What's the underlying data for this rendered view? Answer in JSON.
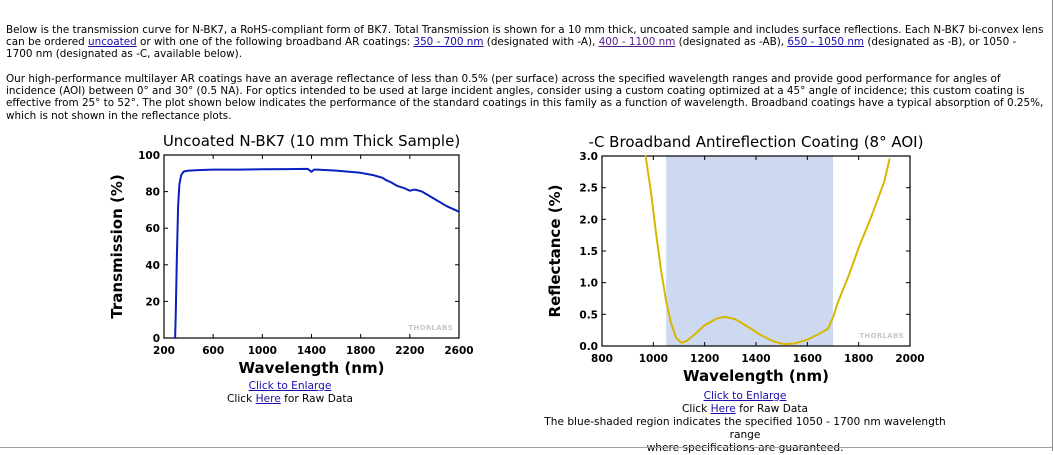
{
  "intro": {
    "p1_a": "Below is the transmission curve for N-BK7, a RoHS-compliant form of BK7. Total Transmission is shown for a 10 mm thick, uncoated sample and includes surface reflections. Each N-BK7 bi-convex lens can be ordered ",
    "link_uncoated": "uncoated",
    "p1_b": " or with one of the following broadband AR coatings: ",
    "link_350": "350 - 700 nm",
    "p1_c": " (designated with -A), ",
    "link_400": "400 - 1100 nm",
    "p1_d": " (designated as -AB), ",
    "link_650": "650 - 1050 nm",
    "p1_e": " (designated as -B), or 1050 - 1700 nm (designated as -C, available below).",
    "p2": "Our high-performance multilayer AR coatings have an average reflectance of less than 0.5% (per surface) across the specified wavelength ranges and provide good performance for angles of incidence (AOI) between 0° and 30° (0.5 NA). For optics intended to be used at large incident angles, consider using a custom coating optimized at a 45° angle of incidence; this custom coating is effective from 25° to 52°. The plot shown below indicates the performance of the standard coatings in this family as a function of wavelength. Broadband coatings have a typical absorption of 0.25%, which is not shown in the reflectance plots."
  },
  "chart_data": [
    {
      "type": "line",
      "title": "Uncoated N-BK7 (10 mm Thick Sample)",
      "xlabel": "Wavelength (nm)",
      "ylabel": "Transmission (%)",
      "xlim": [
        200,
        2600
      ],
      "ylim": [
        0,
        100
      ],
      "xticks": [
        "200",
        "600",
        "1000",
        "1400",
        "1800",
        "2200",
        "2600"
      ],
      "yticks": [
        "0",
        "20",
        "40",
        "60",
        "80",
        "100"
      ],
      "watermark": "THORLABS",
      "color": "#0a1fbf",
      "x": [
        290,
        295,
        305,
        315,
        325,
        340,
        360,
        400,
        500,
        600,
        800,
        1000,
        1200,
        1370,
        1400,
        1420,
        1450,
        1600,
        1800,
        1900,
        1980,
        2000,
        2050,
        2100,
        2150,
        2200,
        2230,
        2250,
        2300,
        2400,
        2500,
        2600
      ],
      "y": [
        0,
        12,
        45,
        72,
        84,
        89,
        91,
        91.5,
        91.8,
        92,
        92,
        92.2,
        92.3,
        92.4,
        90.8,
        92,
        92,
        91.5,
        90.3,
        89,
        87.5,
        86.5,
        85,
        83,
        82,
        80.5,
        81,
        81,
        80,
        76,
        72,
        69
      ]
    },
    {
      "type": "line",
      "title": "-C Broadband Antireflection Coating (8° AOI)",
      "xlabel": "Wavelength (nm)",
      "ylabel": "Reflectance (%)",
      "xlim": [
        800,
        2000
      ],
      "ylim": [
        0,
        3
      ],
      "xticks": [
        "800",
        "1000",
        "1200",
        "1400",
        "1600",
        "1800",
        "2000"
      ],
      "yticks": [
        "0.0",
        "0.5",
        "1.0",
        "1.5",
        "2.0",
        "2.5",
        "3.0"
      ],
      "shaded_region": [
        1050,
        1700
      ],
      "shade_color": "#cdd9f0",
      "watermark": "THORLABS",
      "color": "#d7b700",
      "x": [
        970,
        990,
        1010,
        1030,
        1050,
        1070,
        1090,
        1110,
        1130,
        1160,
        1200,
        1250,
        1280,
        1320,
        1370,
        1420,
        1470,
        1510,
        1550,
        1600,
        1640,
        1680,
        1700,
        1720,
        1760,
        1800,
        1850,
        1900,
        1920
      ],
      "y": [
        3.0,
        2.45,
        1.8,
        1.2,
        0.7,
        0.35,
        0.12,
        0.05,
        0.08,
        0.18,
        0.33,
        0.44,
        0.46,
        0.42,
        0.3,
        0.17,
        0.07,
        0.03,
        0.04,
        0.1,
        0.18,
        0.27,
        0.45,
        0.7,
        1.1,
        1.55,
        2.05,
        2.6,
        2.95
      ]
    }
  ],
  "left_caption": {
    "enlarge_link": "Click to Enlarge",
    "raw_prefix": "Click ",
    "raw_link": "Here",
    "raw_suffix": " for Raw Data"
  },
  "right_caption": {
    "enlarge_link": "Click to Enlarge",
    "raw_prefix": "Click ",
    "raw_link": "Here",
    "raw_suffix": " for Raw Data",
    "note_line1": "The blue-shaded region indicates the specified 1050 - 1700 nm wavelength range",
    "note_line2": "where specifications are guaranteed."
  }
}
